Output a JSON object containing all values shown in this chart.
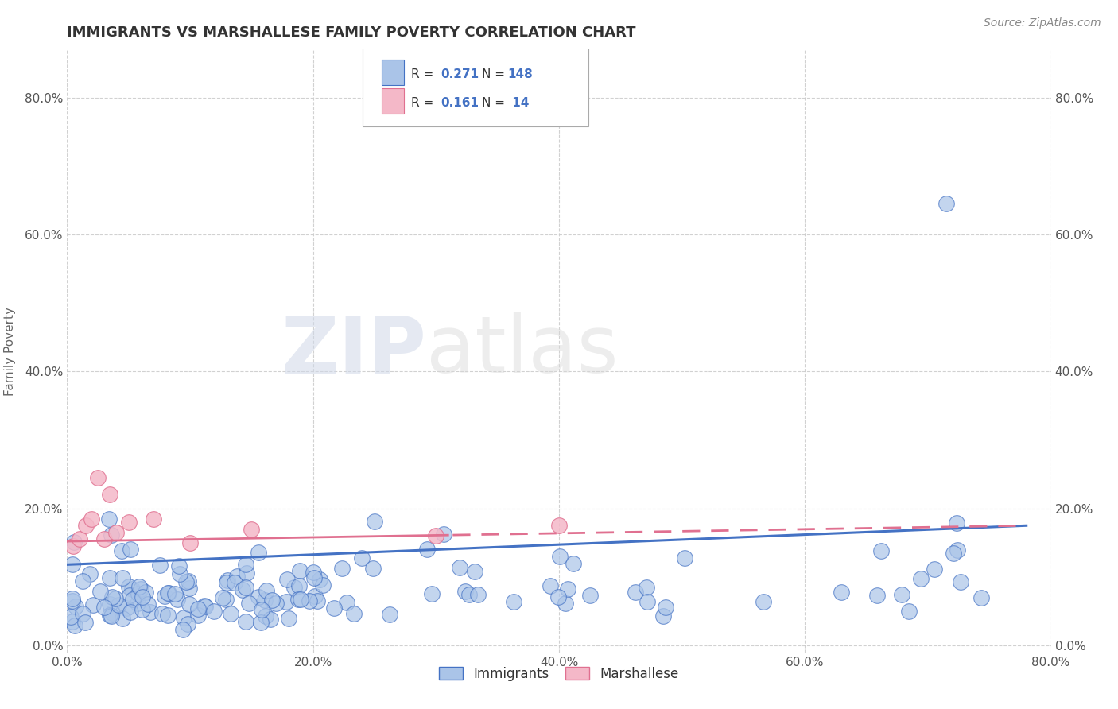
{
  "title": "IMMIGRANTS VS MARSHALLESE FAMILY POVERTY CORRELATION CHART",
  "source": "Source: ZipAtlas.com",
  "ylabel": "Family Poverty",
  "xlim": [
    0.0,
    0.8
  ],
  "ylim": [
    -0.01,
    0.87
  ],
  "ytick_labels": [
    "0.0%",
    "20.0%",
    "40.0%",
    "60.0%",
    "80.0%"
  ],
  "ytick_vals": [
    0.0,
    0.2,
    0.4,
    0.6,
    0.8
  ],
  "xtick_labels": [
    "0.0%",
    "20.0%",
    "40.0%",
    "60.0%",
    "80.0%"
  ],
  "xtick_vals": [
    0.0,
    0.2,
    0.4,
    0.6,
    0.8
  ],
  "immigrants_fill": "#aac4e8",
  "immigrants_edge": "#4472c4",
  "marshallese_fill": "#f4b8c8",
  "marshallese_edge": "#e07090",
  "immigrants_line_color": "#4472c4",
  "marshallese_line_color": "#e07090",
  "immigrants_R": 0.271,
  "immigrants_N": 148,
  "marshallese_R": 0.161,
  "marshallese_N": 14,
  "watermark_zip": "ZIP",
  "watermark_atlas": "atlas",
  "legend_immigrants": "Immigrants",
  "legend_marshallese": "Marshallese",
  "background_color": "#ffffff",
  "grid_color": "#cccccc",
  "title_color": "#333333",
  "title_fontsize": 13,
  "source_color": "#888888",
  "axis_label_color": "#666666",
  "tick_color": "#555555"
}
